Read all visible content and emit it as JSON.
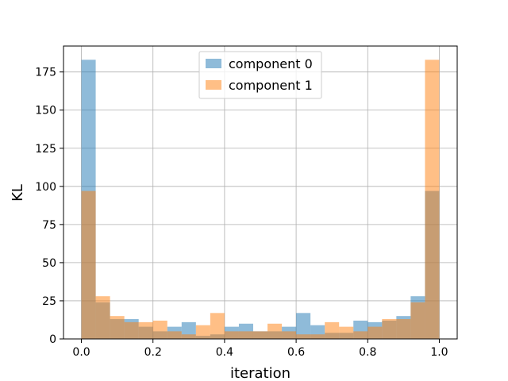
{
  "chart_data": {
    "type": "bar",
    "xlabel": "iteration",
    "ylabel": "KL",
    "xlim": [
      -0.05,
      1.05
    ],
    "ylim": [
      0,
      192
    ],
    "xticks": [
      0.0,
      0.2,
      0.4,
      0.6,
      0.8,
      1.0
    ],
    "xtick_labels": [
      "0.0",
      "0.2",
      "0.4",
      "0.6",
      "0.8",
      "1.0"
    ],
    "yticks": [
      0,
      25,
      50,
      75,
      100,
      125,
      150,
      175
    ],
    "ytick_labels": [
      "0",
      "25",
      "50",
      "75",
      "100",
      "125",
      "150",
      "175"
    ],
    "grid": true,
    "legend_position": "top-center",
    "bin_edges": [
      0,
      0.04,
      0.08,
      0.12,
      0.16,
      0.2,
      0.24,
      0.28,
      0.32,
      0.36,
      0.4,
      0.44,
      0.48,
      0.52,
      0.56,
      0.6,
      0.64,
      0.68,
      0.72,
      0.76,
      0.8,
      0.84,
      0.88,
      0.92,
      0.96,
      1.0
    ],
    "series": [
      {
        "name": "component 0",
        "color": "#1f77b4",
        "opacity": 0.5,
        "values": [
          183,
          24,
          13,
          13,
          8,
          5,
          8,
          11,
          2,
          3,
          8,
          10,
          5,
          5,
          8,
          17,
          9,
          4,
          4,
          12,
          11,
          12,
          15,
          28,
          97
        ]
      },
      {
        "name": "component 1",
        "color": "#ff7f0e",
        "opacity": 0.5,
        "values": [
          97,
          28,
          15,
          11,
          11,
          12,
          5,
          3,
          9,
          17,
          5,
          5,
          5,
          10,
          5,
          3,
          3,
          11,
          8,
          5,
          8,
          13,
          13,
          24,
          183
        ]
      }
    ]
  }
}
